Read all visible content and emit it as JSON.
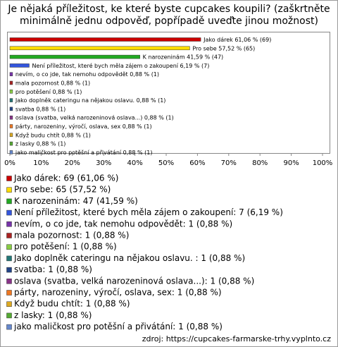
{
  "chart_data": {
    "type": "bar",
    "orientation": "horizontal",
    "title": "Je nějaká příležitost, ke které byste cupcakes koupili? (zaškrtněte minimálně jednu odpověď, popřípadě uveďte jinou možnost)",
    "categories": [
      "Jako dárek",
      "Pro sebe",
      "K narozeninám",
      "Není příležitost, které bych měla zájem o zakoupení",
      "nevím, o co jde, tak nemohu odpovědět",
      "mala pozornost",
      "pro potěšení",
      "Jako doplněk cateringu na nějakou oslavu. ",
      "svatba",
      "oslava (svatba, velká narozeninová oslava...)",
      "párty, narozeniny, výročí, oslava, sex",
      "Když budu chtít",
      "z lasky",
      "jako maličkost pro potěšní a přivátání"
    ],
    "values": [
      61.06,
      57.52,
      41.59,
      6.19,
      0.88,
      0.88,
      0.88,
      0.88,
      0.88,
      0.88,
      0.88,
      0.88,
      0.88,
      0.88
    ],
    "value_labels": [
      "61,06 % (69)",
      "57,52 % (65)",
      "41,59 % (47)",
      "6,19 % (7)",
      "0,88 % (1)",
      "0,88 % (1)",
      "0,88 % (1)",
      "0,88 % (1)",
      "0,88 % (1)",
      "0,88 % (1)",
      "0,88 % (1)",
      "0,88 % (1)",
      "0,88 % (1)",
      "0,88 % (1)"
    ],
    "colors": [
      "#cc0000",
      "#ffdd00",
      "#22aa22",
      "#3355dd",
      "#7733aa",
      "#aa2222",
      "#88cc44",
      "#227777",
      "#224488",
      "#883388",
      "#ee7722",
      "#ddaa22",
      "#55aa33",
      "#6688cc"
    ],
    "legend": [
      "Jako dárek: 69 (61,06 %)",
      "Pro sebe: 65 (57,52 %)",
      "K narozeninám: 47 (41,59 %)",
      "Není příležitost, které bych měla zájem o zakoupení: 7 (6,19 %)",
      "nevím, o co jde, tak nemohu odpovědět: 1 (0,88 %)",
      "mala pozornost: 1 (0,88 %)",
      "pro potěšení: 1 (0,88 %)",
      "Jako doplněk cateringu na nějakou oslavu. : 1 (0,88 %)",
      "svatba: 1 (0,88 %)",
      "oslava (svatba, velká narozeninová oslava...): 1 (0,88 %)",
      "párty, narozeniny, výročí, oslava, sex: 1 (0,88 %)",
      "Když budu chtít: 1 (0,88 %)",
      "z lasky: 1 (0,88 %)",
      "jako maličkost pro potěšní a přivátání: 1 (0,88 %)"
    ],
    "xlim": [
      0,
      100
    ],
    "xticks": [
      {
        "value": 0,
        "label": "0%"
      },
      {
        "value": 10,
        "label": "10%"
      },
      {
        "value": 20,
        "label": "20%"
      },
      {
        "value": 30,
        "label": "30%"
      },
      {
        "value": 40,
        "label": "40%"
      },
      {
        "value": 50,
        "label": "50%"
      },
      {
        "value": 60,
        "label": "60%"
      },
      {
        "value": 70,
        "label": "70%"
      },
      {
        "value": 80,
        "label": "80%"
      },
      {
        "value": 90,
        "label": "90%"
      },
      {
        "value": 100,
        "label": "100%"
      }
    ],
    "source": "zdroj: https://cupcakes-farmarske-trhy.vyplnto.cz"
  }
}
